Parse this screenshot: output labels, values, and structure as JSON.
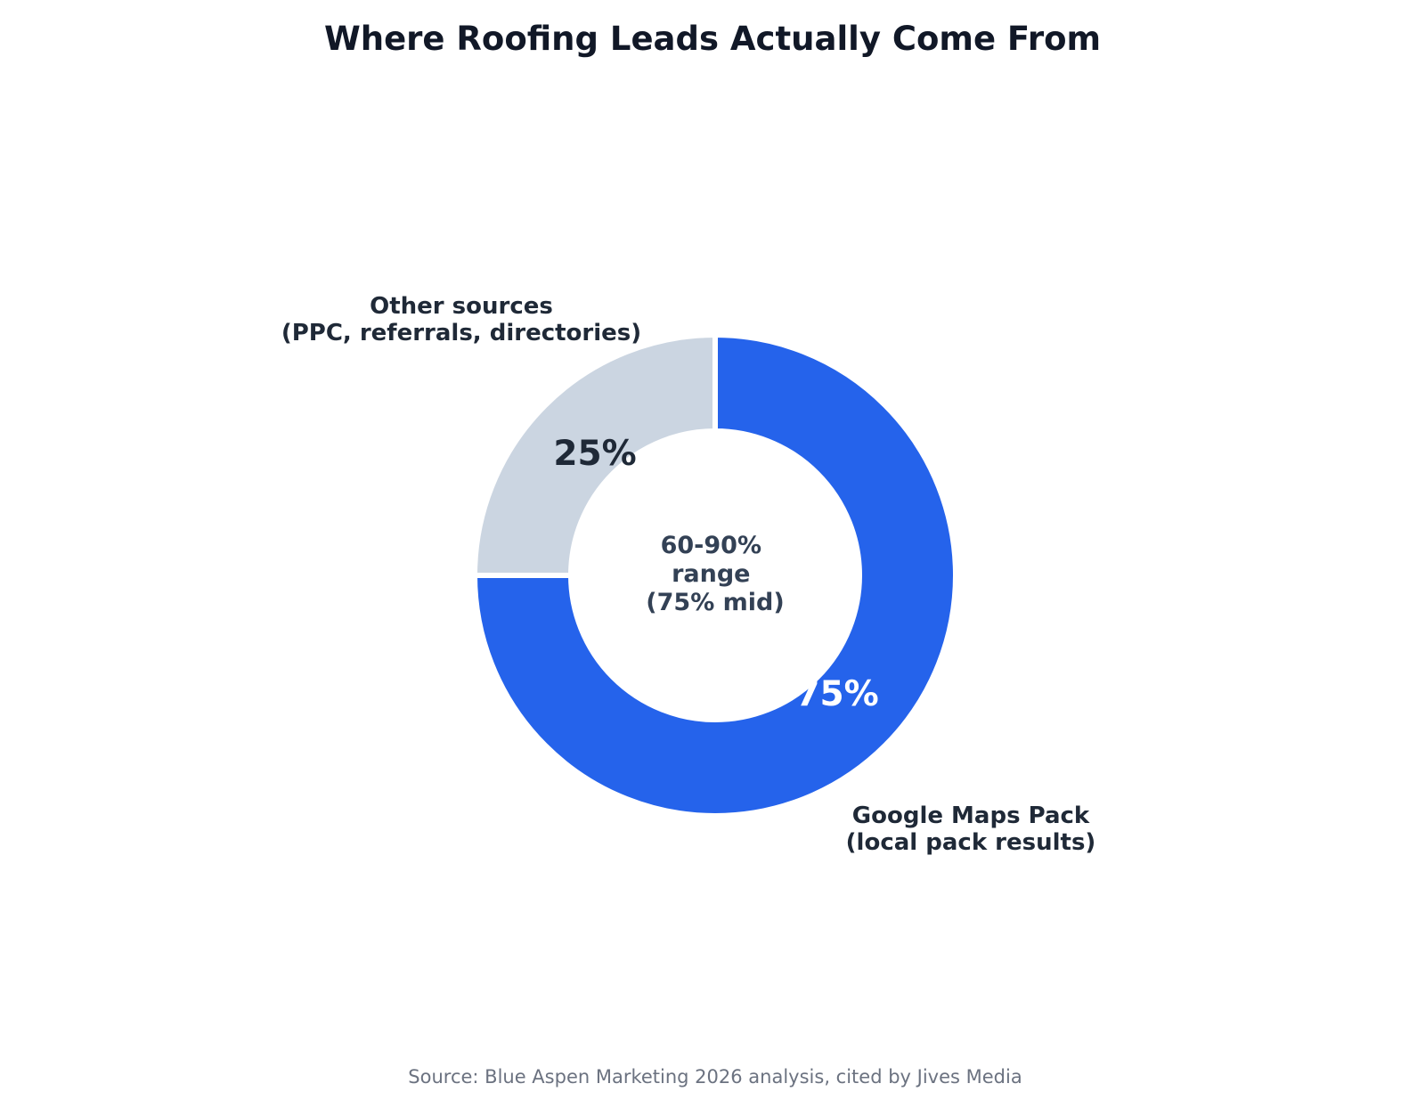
{
  "chart_data": {
    "type": "pie",
    "title": "Where Roofing Leads Actually Come From",
    "slices": [
      {
        "label_lines": [
          "Google Maps Pack",
          "(local pack results)"
        ],
        "value": 75,
        "value_label": "75%",
        "color": "#2563eb",
        "value_label_color": "#ffffff"
      },
      {
        "label_lines": [
          "Other sources",
          "(PPC, referrals, directories)"
        ],
        "value": 25,
        "value_label": "25%",
        "color": "#cbd5e1",
        "value_label_color": "#1f2937"
      }
    ],
    "center_text": [
      "60-90%",
      "range",
      "(75% mid)"
    ],
    "donut": true,
    "legend": "none",
    "source": "Source: Blue Aspen Marketing 2026 analysis, cited by Jives Media"
  }
}
